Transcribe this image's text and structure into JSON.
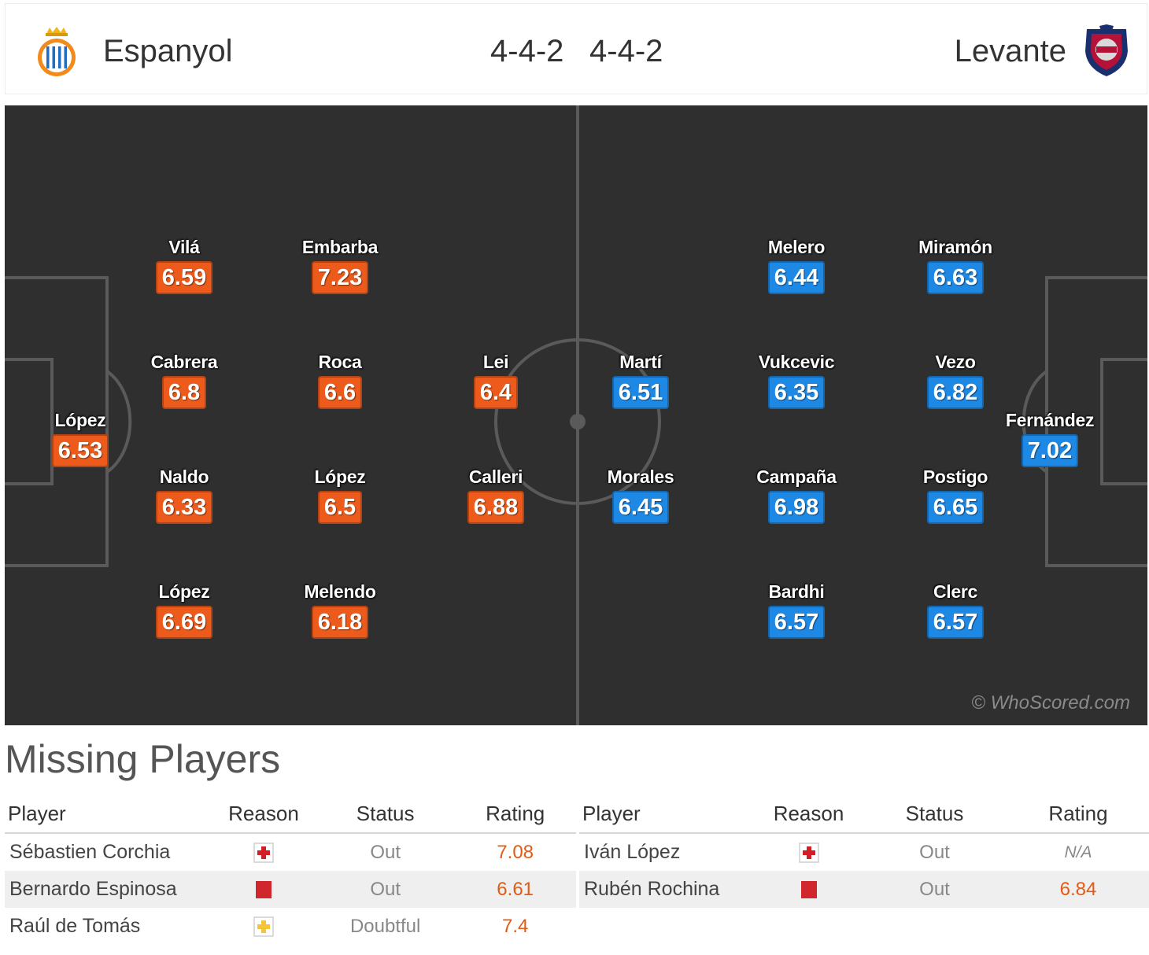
{
  "header": {
    "home_team": "Espanyol",
    "away_team": "Levante",
    "home_formation": "4-4-2",
    "away_formation": "4-4-2",
    "home_crest_icon": "espanyol-crest-icon",
    "away_crest_icon": "levante-crest-icon"
  },
  "colors": {
    "home": "#ec5b1b",
    "away": "#1e88e5",
    "pitch": "#2f2f2f"
  },
  "pitch": {
    "watermark": "© WhoScored.com",
    "home_players": [
      {
        "name": "López",
        "rating": "6.53"
      },
      {
        "name": "Vilá",
        "rating": "6.59"
      },
      {
        "name": "Cabrera",
        "rating": "6.8"
      },
      {
        "name": "Naldo",
        "rating": "6.33"
      },
      {
        "name": "López",
        "rating": "6.69"
      },
      {
        "name": "Embarba",
        "rating": "7.23"
      },
      {
        "name": "Roca",
        "rating": "6.6"
      },
      {
        "name": "López",
        "rating": "6.5"
      },
      {
        "name": "Melendo",
        "rating": "6.18"
      },
      {
        "name": "Lei",
        "rating": "6.4"
      },
      {
        "name": "Calleri",
        "rating": "6.88"
      }
    ],
    "away_players": [
      {
        "name": "Fernández",
        "rating": "7.02"
      },
      {
        "name": "Miramón",
        "rating": "6.63"
      },
      {
        "name": "Vezo",
        "rating": "6.82"
      },
      {
        "name": "Postigo",
        "rating": "6.65"
      },
      {
        "name": "Clerc",
        "rating": "6.57"
      },
      {
        "name": "Melero",
        "rating": "6.44"
      },
      {
        "name": "Vukcevic",
        "rating": "6.35"
      },
      {
        "name": "Campaña",
        "rating": "6.98"
      },
      {
        "name": "Bardhi",
        "rating": "6.57"
      },
      {
        "name": "Martí",
        "rating": "6.51"
      },
      {
        "name": "Morales",
        "rating": "6.45"
      }
    ]
  },
  "missing": {
    "title": "Missing Players",
    "headers": {
      "player": "Player",
      "reason": "Reason",
      "status": "Status",
      "rating": "Rating"
    },
    "home": [
      {
        "player": "Sébastien Corchia",
        "reason_icon": "injury-icon",
        "status": "Out",
        "rating": "7.08"
      },
      {
        "player": "Bernardo Espinosa",
        "reason_icon": "red-card-icon",
        "status": "Out",
        "rating": "6.61"
      },
      {
        "player": "Raúl de Tomás",
        "reason_icon": "doubtful-injury-icon",
        "status": "Doubtful",
        "rating": "7.4"
      }
    ],
    "away": [
      {
        "player": "Iván López",
        "reason_icon": "injury-icon",
        "status": "Out",
        "rating": "N/A"
      },
      {
        "player": "Rubén Rochina",
        "reason_icon": "red-card-icon",
        "status": "Out",
        "rating": "6.84"
      }
    ]
  }
}
